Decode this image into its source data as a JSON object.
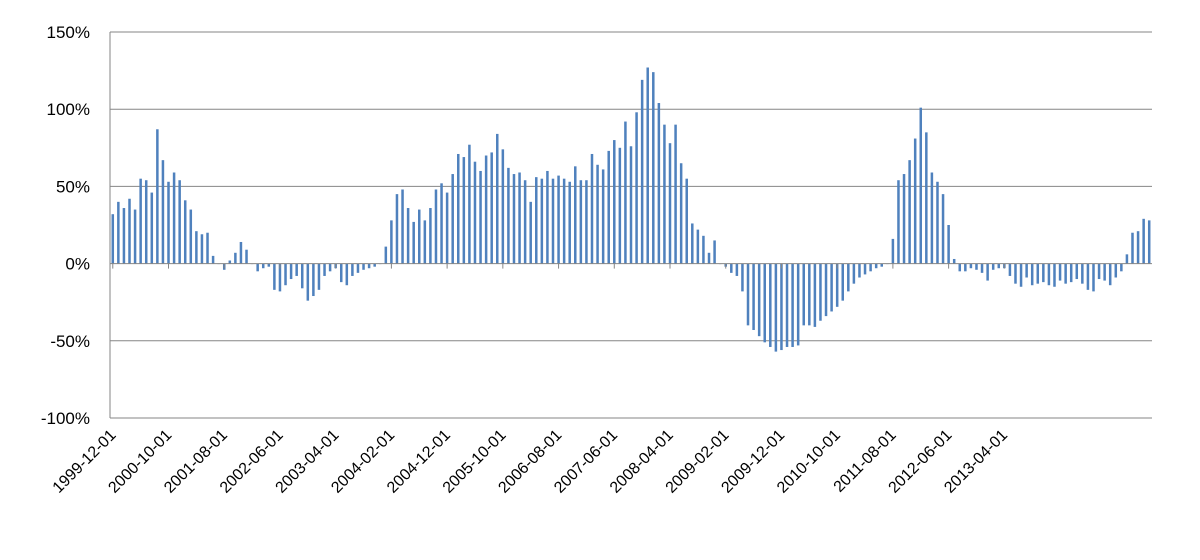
{
  "chart_data": {
    "type": "bar",
    "title": "",
    "xlabel": "",
    "ylabel": "",
    "ylim": [
      -100,
      150
    ],
    "y_ticks": [
      150,
      100,
      50,
      0,
      -50,
      -100
    ],
    "y_tick_labels": [
      "150%",
      "100%",
      "50%",
      "0%",
      "-50%",
      "-100%"
    ],
    "grid": true,
    "legend": "none",
    "bar_color": "#4f81bd",
    "grid_color": "#868686",
    "x_tick_labels": [
      "1999-12-01",
      "2000-10-01",
      "2001-08-01",
      "2002-06-01",
      "2003-04-01",
      "2004-02-01",
      "2004-12-01",
      "2005-10-01",
      "2006-08-01",
      "2007-06-01",
      "2008-04-01",
      "2009-02-01",
      "2009-12-01",
      "2010-10-01",
      "2011-08-01",
      "2012-06-01",
      "2013-04-01"
    ],
    "start_month": "1999-12",
    "values": [
      32,
      40,
      36,
      42,
      35,
      55,
      54,
      46,
      87,
      67,
      53,
      59,
      54,
      41,
      35,
      21,
      19,
      20,
      5,
      0,
      -4,
      2,
      7,
      14,
      9,
      0,
      -5,
      -3,
      -2,
      -17,
      -18,
      -14,
      -10,
      -8,
      -16,
      -24,
      -21,
      -17,
      -8,
      -5,
      -3,
      -12,
      -14,
      -8,
      -6,
      -4,
      -3,
      -2,
      0,
      11,
      28,
      45,
      48,
      36,
      27,
      35,
      28,
      36,
      48,
      52,
      46,
      58,
      71,
      69,
      77,
      66,
      60,
      70,
      72,
      84,
      74,
      62,
      58,
      59,
      54,
      40,
      56,
      55,
      60,
      55,
      57,
      55,
      53,
      63,
      54,
      54,
      71,
      64,
      61,
      73,
      80,
      75,
      92,
      76,
      98,
      119,
      127,
      124,
      104,
      90,
      78,
      90,
      65,
      55,
      26,
      22,
      18,
      7,
      15,
      0,
      -2,
      -6,
      -8,
      -18,
      -40,
      -43,
      -47,
      -51,
      -54,
      -57,
      -56,
      -54,
      -54,
      -53,
      -40,
      -40,
      -41,
      -37,
      -34,
      -31,
      -28,
      -24,
      -18,
      -13,
      -9,
      -7,
      -5,
      -3,
      -2,
      0,
      16,
      54,
      58,
      67,
      81,
      101,
      85,
      59,
      53,
      45,
      25,
      3,
      -5,
      -5,
      -3,
      -4,
      -6,
      -11,
      -4,
      -3,
      -3,
      -8,
      -13,
      -15,
      -9,
      -14,
      -13,
      -12,
      -14,
      -15,
      -11,
      -13,
      -12,
      -10,
      -13,
      -17,
      -18,
      -10,
      -11,
      -14,
      -9,
      -5,
      6,
      20,
      21,
      29,
      28
    ]
  }
}
